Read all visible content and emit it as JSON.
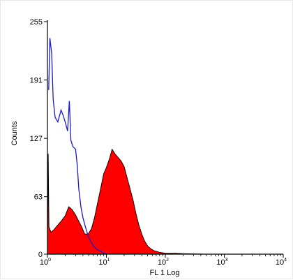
{
  "chart_data": {
    "type": "area",
    "title": "",
    "xlabel": "FL 1 Log",
    "ylabel": "Counts",
    "x_scale": "log",
    "xlim": [
      1,
      10000
    ],
    "ylim": [
      0,
      255
    ],
    "grid": false,
    "y_ticks": [
      "0",
      "63",
      "127",
      "191",
      "255"
    ],
    "y_tick_values": [
      0,
      63,
      127,
      191,
      255
    ],
    "x_ticks": [
      {
        "value": 1,
        "base": "10",
        "exp": "0"
      },
      {
        "value": 10,
        "base": "10",
        "exp": "1"
      },
      {
        "value": 100,
        "base": "10",
        "exp": "2"
      },
      {
        "value": 1000,
        "base": "10",
        "exp": "3"
      },
      {
        "value": 10000,
        "base": "10",
        "exp": "4"
      }
    ],
    "series": [
      {
        "kind": "filled",
        "color": "#ff0000",
        "outline": "#000000",
        "points": [
          [
            1.0,
            0
          ],
          [
            1.03,
            110
          ],
          [
            1.06,
            30
          ],
          [
            1.15,
            24
          ],
          [
            1.3,
            27
          ],
          [
            1.5,
            32
          ],
          [
            1.7,
            36
          ],
          [
            2.0,
            42
          ],
          [
            2.3,
            52
          ],
          [
            2.6,
            49
          ],
          [
            3.0,
            43
          ],
          [
            3.4,
            36
          ],
          [
            3.8,
            30
          ],
          [
            4.3,
            22
          ],
          [
            4.9,
            22
          ],
          [
            5.6,
            28
          ],
          [
            6.3,
            40
          ],
          [
            7.1,
            56
          ],
          [
            8.0,
            72
          ],
          [
            9.0,
            88
          ],
          [
            10.0,
            95
          ],
          [
            11.2,
            104
          ],
          [
            12.5,
            115
          ],
          [
            14.0,
            110
          ],
          [
            15.8,
            106
          ],
          [
            17.8,
            102
          ],
          [
            20.0,
            96
          ],
          [
            22.4,
            84
          ],
          [
            25.1,
            72
          ],
          [
            28.2,
            60
          ],
          [
            31.6,
            45
          ],
          [
            35.5,
            32
          ],
          [
            39.8,
            22
          ],
          [
            44.7,
            14
          ],
          [
            50.1,
            9
          ],
          [
            56.2,
            6
          ],
          [
            63.1,
            4
          ],
          [
            70.8,
            3
          ],
          [
            79.4,
            2
          ],
          [
            89.1,
            1.5
          ],
          [
            100.0,
            1
          ],
          [
            150.0,
            1
          ],
          [
            200.0,
            0.5
          ],
          [
            300.0,
            0.3
          ],
          [
            500.0,
            0
          ]
        ]
      },
      {
        "kind": "line",
        "color": "#1a1acc",
        "points": [
          [
            1.05,
            180
          ],
          [
            1.1,
            237
          ],
          [
            1.18,
            220
          ],
          [
            1.25,
            170
          ],
          [
            1.35,
            150
          ],
          [
            1.5,
            145
          ],
          [
            1.7,
            158
          ],
          [
            1.85,
            152
          ],
          [
            2.0,
            145
          ],
          [
            2.2,
            135
          ],
          [
            2.35,
            168
          ],
          [
            2.5,
            125
          ],
          [
            2.7,
            118
          ],
          [
            3.0,
            115
          ],
          [
            3.2,
            98
          ],
          [
            3.4,
            72
          ],
          [
            3.7,
            52
          ],
          [
            4.0,
            40
          ],
          [
            4.4,
            30
          ],
          [
            4.9,
            20
          ],
          [
            5.5,
            13
          ],
          [
            6.2,
            8
          ],
          [
            7.0,
            5
          ],
          [
            8.0,
            3
          ],
          [
            9.0,
            1
          ],
          [
            10.0,
            0
          ]
        ]
      }
    ]
  }
}
